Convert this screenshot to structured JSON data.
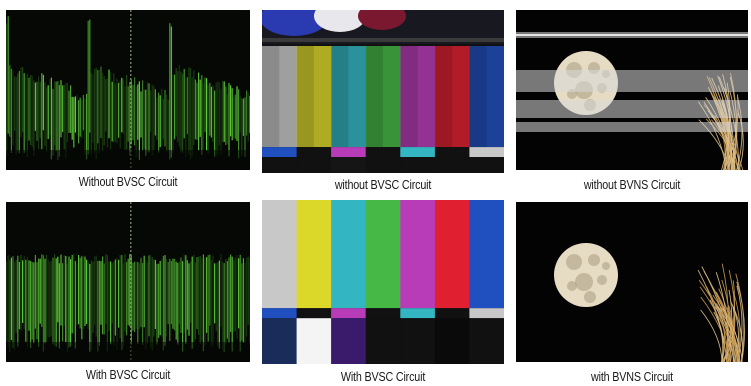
{
  "captions": {
    "top_waveform": "Without BVSC Circuit",
    "top_colorbars": "without BVSC Circuit",
    "top_moon": "without BVNS Circuit",
    "bottom_waveform": "With BVSC Circuit",
    "bottom_colorbars": "With BVSC Circuit",
    "bottom_moon": "with BVNS Circuit"
  },
  "colors": {
    "waveform_green": "#5fcf3a",
    "waveform_dark": "#1e4a12",
    "bar_white": "#c8c8c8",
    "bar_yellow": "#dcd82a",
    "bar_cyan": "#33b6c2",
    "bar_green": "#45b845",
    "bar_magenta": "#b83cb8",
    "bar_red": "#e02030",
    "bar_blue": "#2050c0",
    "moon": "#e6dcc4"
  },
  "icons": {
    "waveform": "waveform-monitor-image",
    "colorbars": "color-bars-image",
    "moon": "moon-and-pampas-grass-image"
  }
}
